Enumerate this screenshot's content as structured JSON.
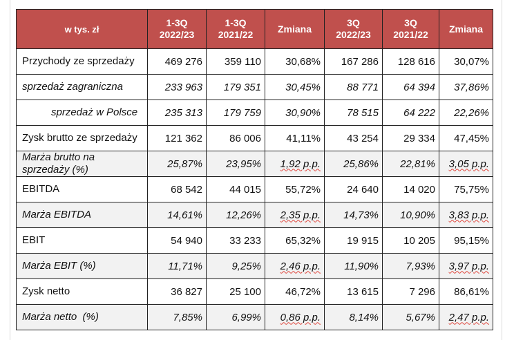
{
  "table": {
    "headers": [
      {
        "lines": [
          "w tys. zł"
        ]
      },
      {
        "lines": [
          "1-3Q",
          "2022/23"
        ]
      },
      {
        "lines": [
          "1-3Q",
          "2021/22"
        ]
      },
      {
        "lines": [
          "Zmiana"
        ]
      },
      {
        "lines": [
          "3Q",
          "2022/23"
        ]
      },
      {
        "lines": [
          "3Q",
          "2021/22"
        ]
      },
      {
        "lines": [
          "Zmiana"
        ]
      }
    ],
    "rows": [
      {
        "label": "Przychody ze sprzedaży",
        "cells": [
          "469 276",
          "359 110",
          "30,68%",
          "167 286",
          "128 616",
          "30,07%"
        ]
      },
      {
        "label": "sprzedaż zagraniczna",
        "cells": [
          "233 963",
          "179 351",
          "30,45%",
          "88 771",
          "64 394",
          "37,86%"
        ]
      },
      {
        "label": "sprzedaż w Polsce",
        "cells": [
          "235 313",
          "179 759",
          "30,90%",
          "78 515",
          "64 222",
          "22,26%"
        ]
      },
      {
        "label": "Zysk brutto ze sprzedaży",
        "cells": [
          "121 362",
          "86 006",
          "41,11%",
          "43 254",
          "29 334",
          "47,45%"
        ]
      },
      {
        "label": "Marża brutto na sprzedaży (%)",
        "cells": [
          "25,87%",
          "23,95%",
          "1,92 p.p.",
          "25,86%",
          "22,81%",
          "3,05 p.p."
        ]
      },
      {
        "label": "EBITDA",
        "cells": [
          "68 542",
          "44 015",
          "55,72%",
          "24 640",
          "14 020",
          "75,75%"
        ]
      },
      {
        "label": "Marża EBITDA",
        "cells": [
          "14,61%",
          "12,26%",
          "2,35 p.p.",
          "14,73%",
          "10,90%",
          "3,83 p.p."
        ]
      },
      {
        "label": "EBIT",
        "cells": [
          "54 940",
          "33 233",
          "65,32%",
          "19 915",
          "10 205",
          "95,15%"
        ]
      },
      {
        "label": "Marża EBIT (%)",
        "cells": [
          "11,71%",
          "9,25%",
          "2,46 p.p.",
          "11,90%",
          "7,93%",
          "3,97 p.p."
        ]
      },
      {
        "label": "Zysk netto",
        "cells": [
          "36 827",
          "25 100",
          "46,72%",
          "13 615",
          "7 296",
          "86,61%"
        ]
      },
      {
        "label": "Marża netto  (%)",
        "cells": [
          "7,85%",
          "6,99%",
          "0,86 p.p.",
          "8,14%",
          "5,67%",
          "2,47 p.p."
        ]
      }
    ]
  },
  "colors": {
    "header_bg": "#c0504d",
    "header_text": "#ffffff",
    "shade_bg": "#f2f2f2",
    "spellcheck_underline": "#e0463c"
  }
}
